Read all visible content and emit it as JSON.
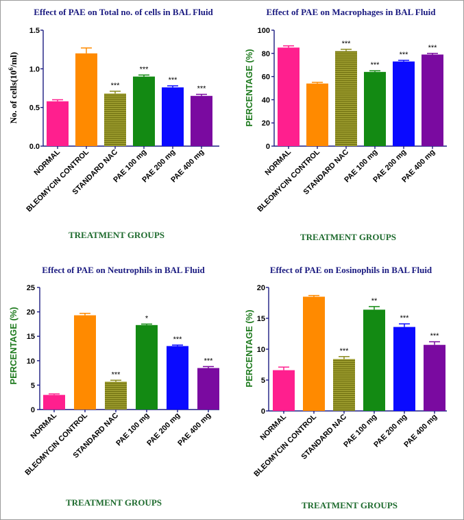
{
  "colors": {
    "title": "#1a1a80",
    "xlabel": "#1e6b2e",
    "ylabel": "#1e7a1e",
    "axis": "#1a1a80",
    "bars": [
      "#ff1f8e",
      "#ff8a00",
      "#8a8a1e",
      "#138a13",
      "#0a0aff",
      "#7a0aa0"
    ]
  },
  "chart_data": [
    {
      "type": "bar",
      "title": "Effect of PAE on Total no. of cells in BAL Fluid",
      "xlabel": "TREATMENT GROUPS",
      "ylabel": "No. of cells(10",
      "ylabel_sup": "6",
      "ylabel_tail": "/ml)",
      "categories": [
        "NORMAL",
        "BLEOMYCIN CONTROL",
        "STANDARD NAC",
        "PAE 100 mg",
        "PAE 200 mg",
        "PAE 400 mg"
      ],
      "values": [
        0.58,
        1.2,
        0.68,
        0.9,
        0.76,
        0.65
      ],
      "errors": [
        0.02,
        0.07,
        0.03,
        0.02,
        0.02,
        0.02
      ],
      "significance": [
        "",
        "",
        "***",
        "***",
        "***",
        "***"
      ],
      "ylim": [
        0,
        1.5
      ],
      "yticks": [
        "0.0",
        "0.5",
        "1.0",
        "1.5"
      ]
    },
    {
      "type": "bar",
      "title": "Effect of PAE on Macrophages in BAL Fluid",
      "xlabel": "TREATMENT GROUPS",
      "ylabel": "PERCENTAGE (%)",
      "categories": [
        "NORMAL",
        "BLEOMYCIN CONTROL",
        "STANDARD NAC",
        "PAE 100 mg",
        "PAE 200 mg",
        "PAE 400 mg"
      ],
      "values": [
        85,
        54,
        82,
        64,
        73,
        79
      ],
      "errors": [
        1.5,
        1.0,
        1.5,
        1.0,
        1.0,
        1.0
      ],
      "significance": [
        "",
        "",
        "***",
        "***",
        "***",
        "***"
      ],
      "ylim": [
        0,
        100
      ],
      "yticks": [
        "0",
        "20",
        "40",
        "60",
        "80",
        "100"
      ]
    },
    {
      "type": "bar",
      "title": "Effect of PAE on Neutrophils in BAL Fluid",
      "xlabel": "TREATMENT GROUPS",
      "ylabel": "PERCENTAGE (%)",
      "categories": [
        "NORMAL",
        "BLEOMYCIN CONTROL",
        "STANDARD NAC",
        "PAE 100 mg",
        "PAE 200 mg",
        "PAE 400 mg"
      ],
      "values": [
        3.0,
        19.3,
        5.7,
        17.3,
        13.0,
        8.5
      ],
      "errors": [
        0.2,
        0.4,
        0.3,
        0.2,
        0.2,
        0.3
      ],
      "significance": [
        "",
        "",
        "***",
        "*",
        "***",
        "***"
      ],
      "ylim": [
        0,
        25
      ],
      "yticks": [
        "0",
        "5",
        "10",
        "15",
        "20",
        "25"
      ]
    },
    {
      "type": "bar",
      "title": "Effect of PAE on Eosinophils in BAL Fluid",
      "xlabel": "TREATMENT GROUPS",
      "ylabel": "PERCENTAGE (%)",
      "categories": [
        "NORMAL",
        "BLEOMYCIN CONTROL",
        "STANDARD NAC",
        "PAE 100 mg",
        "PAE 200 mg",
        "PAE 400 mg"
      ],
      "values": [
        6.6,
        18.5,
        8.4,
        16.4,
        13.6,
        10.7
      ],
      "errors": [
        0.5,
        0.2,
        0.4,
        0.5,
        0.5,
        0.5
      ],
      "significance": [
        "",
        "",
        "***",
        "**",
        "***",
        "***"
      ],
      "ylim": [
        0,
        20
      ],
      "yticks": [
        "0",
        "5",
        "10",
        "15",
        "20"
      ]
    }
  ]
}
